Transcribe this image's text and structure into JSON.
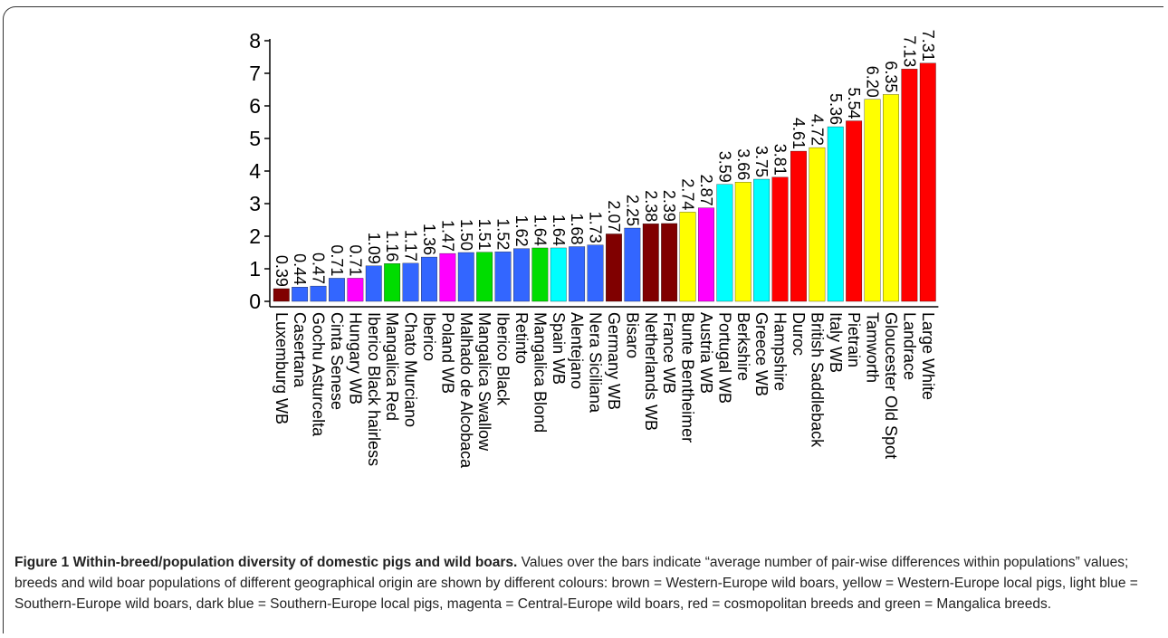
{
  "chart_data": {
    "type": "bar",
    "ylim": [
      0,
      8
    ],
    "yticks": [
      0,
      1,
      2,
      3,
      4,
      5,
      6,
      7,
      8
    ],
    "grid": false,
    "legend": "none",
    "categories": [
      "Luxemburg WB",
      "Casertana",
      "Gochu Asturcelta",
      "Cinta Senese",
      "Hungary WB",
      "Iberico Black hairless",
      "Mangalica Red",
      "Chato Murciano",
      "Iberico",
      "Poland WB",
      "Malhado de Alcobaca",
      "Mangalica Swallow",
      "Iberico Black",
      "Retinto",
      "Mangalica Blond",
      "Spain WB",
      "Alentejano",
      "Nera Siciliana",
      "Germany WB",
      "Bisaro",
      "Netherlands WB",
      "France WB",
      "Bunte Bentheimer",
      "Austria WB",
      "Portugal WB",
      "Berkshire",
      "Greece WB",
      "Hampshire",
      "Duroc",
      "British Saddleback",
      "Italy WB",
      "Pietrain",
      "Tamworth",
      "Gloucester Old Spot",
      "Landrace",
      "Large White"
    ],
    "values": [
      0.39,
      0.44,
      0.47,
      0.71,
      0.71,
      1.09,
      1.16,
      1.17,
      1.36,
      1.47,
      1.5,
      1.51,
      1.52,
      1.62,
      1.64,
      1.64,
      1.68,
      1.73,
      2.07,
      2.25,
      2.38,
      2.39,
      2.74,
      2.87,
      3.59,
      3.66,
      3.75,
      3.81,
      4.61,
      4.72,
      5.36,
      5.54,
      6.2,
      6.35,
      7.13,
      7.31
    ],
    "labels": [
      "0.39",
      "0.44",
      "0.47",
      "0.71",
      "0.71",
      "1.09",
      "1.16",
      "1.17",
      "1.36",
      "1.47",
      "1.50",
      "1.51",
      "1.52",
      "1.62",
      "1.64",
      "1.64",
      "1.68",
      "1.73",
      "2.07",
      "2.25",
      "2.38",
      "2.39",
      "2.74",
      "2.87",
      "3.59",
      "3.66",
      "3.75",
      "3.81",
      "4.61",
      "4.72",
      "5.36",
      "5.54",
      "6.20",
      "6.35",
      "7.13",
      "7.31"
    ],
    "colors": [
      "#800000",
      "#3366ff",
      "#3366ff",
      "#3366ff",
      "#ff00ff",
      "#3366ff",
      "#00dd00",
      "#3366ff",
      "#3366ff",
      "#ff00ff",
      "#3366ff",
      "#00dd00",
      "#3366ff",
      "#3366ff",
      "#00dd00",
      "#00ffff",
      "#3366ff",
      "#3366ff",
      "#800000",
      "#3366ff",
      "#800000",
      "#800000",
      "#ffff00",
      "#ff00ff",
      "#00ffff",
      "#ffff00",
      "#00ffff",
      "#ff0000",
      "#ff0000",
      "#ffff00",
      "#00ffff",
      "#ff0000",
      "#ffff00",
      "#ffff00",
      "#ff0000",
      "#ff0000"
    ]
  },
  "caption": {
    "lead": "Figure 1 Within-breed/population diversity of domestic pigs and wild boars.",
    "text": " Values over the bars indicate “average number of pair-wise differences within populations” values; breeds and wild boar populations of different geographical origin are shown by different colours: brown = Western-Europe wild boars, yellow = Western-Europe local pigs, light blue = Southern-Europe wild boars, dark blue = Southern-Europe local pigs, magenta = Central-Europe wild boars, red = cosmopolitan breeds and green = Mangalica breeds."
  }
}
